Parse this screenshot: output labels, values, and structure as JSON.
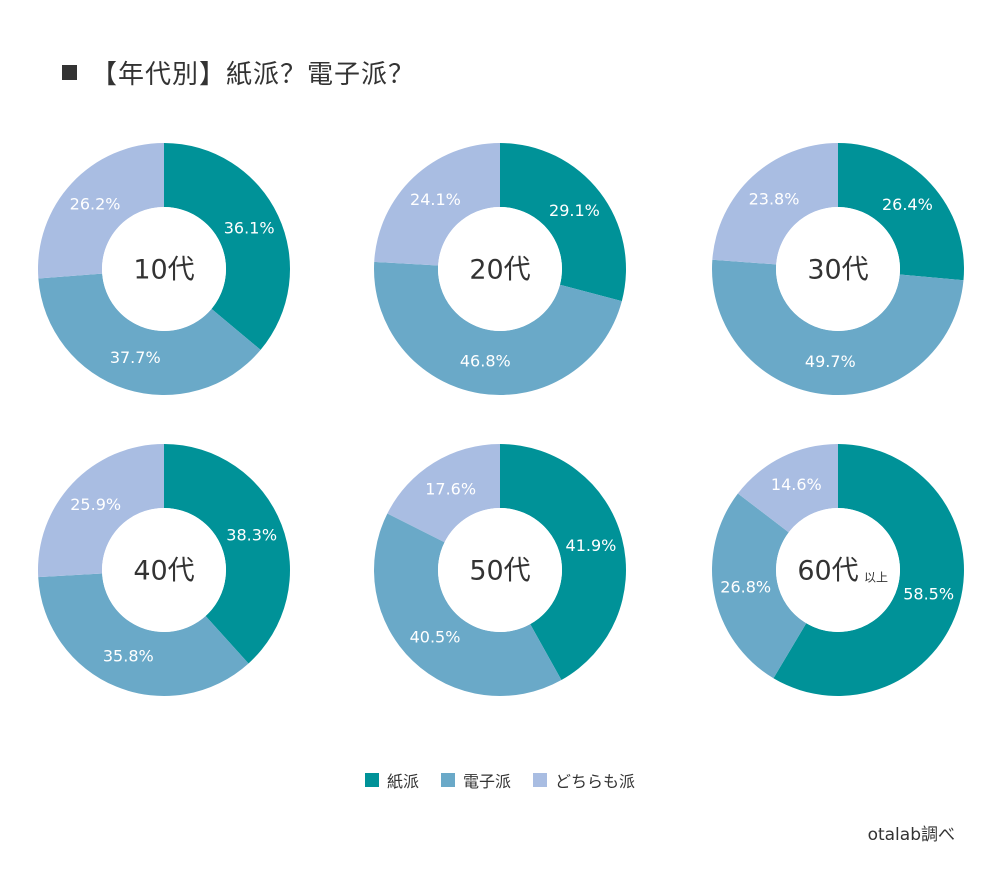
{
  "title": "【年代別】紙派？電子派？",
  "source": "otalab調べ",
  "colors": {
    "paper": "#009298",
    "digital": "#6aa9c8",
    "both": "#a9bde2"
  },
  "legend": [
    {
      "label": "紙派",
      "color": "#009298"
    },
    {
      "label": "電子派",
      "color": "#6aa9c8"
    },
    {
      "label": "どちらも派",
      "color": "#a9bde2"
    }
  ],
  "chart_data": [
    {
      "type": "pie",
      "center_label": "10代",
      "center_suffix": "",
      "slices": [
        {
          "name": "紙派",
          "value": 36.1,
          "label": "36.1%"
        },
        {
          "name": "電子派",
          "value": 37.7,
          "label": "37.7%"
        },
        {
          "name": "どちらも派",
          "value": 26.2,
          "label": "26.2%"
        }
      ]
    },
    {
      "type": "pie",
      "center_label": "20代",
      "center_suffix": "",
      "slices": [
        {
          "name": "紙派",
          "value": 29.1,
          "label": "29.1%"
        },
        {
          "name": "電子派",
          "value": 46.8,
          "label": "46.8%"
        },
        {
          "name": "どちらも派",
          "value": 24.1,
          "label": "24.1%"
        }
      ]
    },
    {
      "type": "pie",
      "center_label": "30代",
      "center_suffix": "",
      "slices": [
        {
          "name": "紙派",
          "value": 26.4,
          "label": "26.4%"
        },
        {
          "name": "電子派",
          "value": 49.7,
          "label": "49.7%"
        },
        {
          "name": "どちらも派",
          "value": 23.8,
          "label": "23.8%"
        }
      ]
    },
    {
      "type": "pie",
      "center_label": "40代",
      "center_suffix": "",
      "slices": [
        {
          "name": "紙派",
          "value": 38.3,
          "label": "38.3%"
        },
        {
          "name": "電子派",
          "value": 35.8,
          "label": "35.8%"
        },
        {
          "name": "どちらも派",
          "value": 25.9,
          "label": "25.9%"
        }
      ]
    },
    {
      "type": "pie",
      "center_label": "50代",
      "center_suffix": "",
      "slices": [
        {
          "name": "紙派",
          "value": 41.9,
          "label": "41.9%"
        },
        {
          "name": "電子派",
          "value": 40.5,
          "label": "40.5%"
        },
        {
          "name": "どちらも派",
          "value": 17.6,
          "label": "17.6%"
        }
      ]
    },
    {
      "type": "pie",
      "center_label": "60代",
      "center_suffix": "以上",
      "slices": [
        {
          "name": "紙派",
          "value": 58.5,
          "label": "58.5%"
        },
        {
          "name": "電子派",
          "value": 26.8,
          "label": "26.8%"
        },
        {
          "name": "どちらも派",
          "value": 14.6,
          "label": "14.6%"
        }
      ]
    }
  ]
}
